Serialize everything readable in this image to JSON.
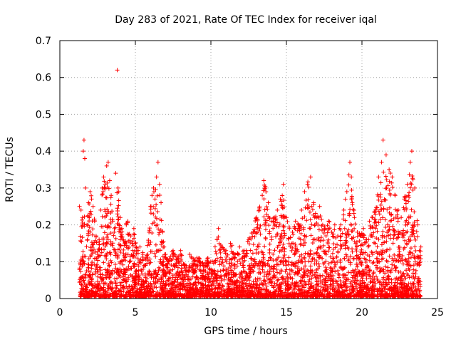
{
  "chart_data": {
    "type": "scatter",
    "title": "Day 283 of 2021, Rate Of TEC Index for receiver iqal",
    "xlabel": "GPS time / hours",
    "ylabel": "ROTI / TECUs",
    "xlim": [
      0,
      25
    ],
    "ylim": [
      0,
      0.7
    ],
    "x_ticks": [
      0,
      5,
      10,
      15,
      20,
      25
    ],
    "y_ticks": [
      0,
      0.1,
      0.2,
      0.3,
      0.4,
      0.5,
      0.6,
      0.7
    ],
    "x_tick_labels": [
      "0",
      "5",
      "10",
      "15",
      "20",
      "25"
    ],
    "y_tick_labels": [
      "0",
      "0.1",
      "0.2",
      "0.3",
      "0.4",
      "0.5",
      "0.6",
      "0.7"
    ],
    "grid": true,
    "marker": "+",
    "color": "#ff0000",
    "series": [
      {
        "points": [
          [
            1.3,
            0.25
          ],
          [
            1.4,
            0.24
          ],
          [
            1.5,
            0.22
          ],
          [
            1.55,
            0.4
          ],
          [
            1.6,
            0.43
          ],
          [
            1.65,
            0.38
          ],
          [
            1.7,
            0.3
          ],
          [
            1.8,
            0.2
          ],
          [
            1.9,
            0.26
          ],
          [
            2.0,
            0.29
          ],
          [
            2.1,
            0.27
          ],
          [
            2.2,
            0.25
          ],
          [
            2.3,
            0.21
          ],
          [
            2.4,
            0.17
          ],
          [
            2.5,
            0.12
          ],
          [
            2.6,
            0.16
          ],
          [
            2.7,
            0.24
          ],
          [
            2.8,
            0.3
          ],
          [
            2.9,
            0.33
          ],
          [
            3.0,
            0.31
          ],
          [
            3.1,
            0.36
          ],
          [
            3.2,
            0.37
          ],
          [
            3.3,
            0.32
          ],
          [
            3.4,
            0.28
          ],
          [
            3.5,
            0.21
          ],
          [
            3.6,
            0.18
          ],
          [
            3.7,
            0.34
          ],
          [
            3.8,
            0.62
          ],
          [
            3.85,
            0.3
          ],
          [
            3.9,
            0.29
          ],
          [
            4.0,
            0.22
          ],
          [
            4.1,
            0.19
          ],
          [
            4.2,
            0.16
          ],
          [
            4.3,
            0.15
          ],
          [
            4.4,
            0.2
          ],
          [
            4.5,
            0.21
          ],
          [
            4.7,
            0.17
          ],
          [
            4.9,
            0.19
          ],
          [
            5.1,
            0.13
          ],
          [
            5.3,
            0.14
          ],
          [
            5.5,
            0.12
          ],
          [
            5.7,
            0.11
          ],
          [
            5.9,
            0.18
          ],
          [
            6.0,
            0.25
          ],
          [
            6.1,
            0.28
          ],
          [
            6.2,
            0.3
          ],
          [
            6.3,
            0.27
          ],
          [
            6.4,
            0.33
          ],
          [
            6.5,
            0.37
          ],
          [
            6.6,
            0.31
          ],
          [
            6.7,
            0.26
          ],
          [
            6.8,
            0.18
          ],
          [
            6.9,
            0.14
          ],
          [
            7.0,
            0.12
          ],
          [
            7.2,
            0.1
          ],
          [
            7.5,
            0.13
          ],
          [
            7.8,
            0.11
          ],
          [
            8.0,
            0.13
          ],
          [
            8.3,
            0.09
          ],
          [
            8.6,
            0.12
          ],
          [
            8.9,
            0.1
          ],
          [
            9.2,
            0.11
          ],
          [
            9.5,
            0.09
          ],
          [
            9.8,
            0.11
          ],
          [
            10.1,
            0.1
          ],
          [
            10.4,
            0.16
          ],
          [
            10.5,
            0.19
          ],
          [
            10.7,
            0.14
          ],
          [
            11.0,
            0.13
          ],
          [
            11.3,
            0.15
          ],
          [
            11.6,
            0.12
          ],
          [
            11.9,
            0.14
          ],
          [
            12.2,
            0.13
          ],
          [
            12.5,
            0.16
          ],
          [
            12.8,
            0.18
          ],
          [
            13.0,
            0.22
          ],
          [
            13.2,
            0.24
          ],
          [
            13.4,
            0.28
          ],
          [
            13.5,
            0.32
          ],
          [
            13.6,
            0.3
          ],
          [
            13.8,
            0.26
          ],
          [
            14.0,
            0.21
          ],
          [
            14.2,
            0.22
          ],
          [
            14.4,
            0.24
          ],
          [
            14.6,
            0.27
          ],
          [
            14.8,
            0.31
          ],
          [
            15.0,
            0.22
          ],
          [
            15.2,
            0.19
          ],
          [
            15.4,
            0.18
          ],
          [
            15.6,
            0.21
          ],
          [
            15.8,
            0.2
          ],
          [
            16.0,
            0.24
          ],
          [
            16.2,
            0.29
          ],
          [
            16.4,
            0.31
          ],
          [
            16.6,
            0.33
          ],
          [
            16.8,
            0.26
          ],
          [
            17.0,
            0.22
          ],
          [
            17.2,
            0.25
          ],
          [
            17.4,
            0.2
          ],
          [
            17.6,
            0.19
          ],
          [
            17.8,
            0.21
          ],
          [
            18.0,
            0.18
          ],
          [
            18.2,
            0.2
          ],
          [
            18.4,
            0.17
          ],
          [
            18.6,
            0.2
          ],
          [
            18.8,
            0.24
          ],
          [
            19.0,
            0.29
          ],
          [
            19.2,
            0.37
          ],
          [
            19.3,
            0.33
          ],
          [
            19.5,
            0.22
          ],
          [
            19.7,
            0.18
          ],
          [
            19.9,
            0.17
          ],
          [
            20.1,
            0.19
          ],
          [
            20.3,
            0.16
          ],
          [
            20.5,
            0.21
          ],
          [
            20.7,
            0.22
          ],
          [
            20.9,
            0.24
          ],
          [
            21.1,
            0.33
          ],
          [
            21.3,
            0.37
          ],
          [
            21.4,
            0.43
          ],
          [
            21.6,
            0.39
          ],
          [
            21.8,
            0.35
          ],
          [
            22.0,
            0.33
          ],
          [
            22.2,
            0.28
          ],
          [
            22.4,
            0.24
          ],
          [
            22.6,
            0.22
          ],
          [
            22.8,
            0.27
          ],
          [
            23.0,
            0.31
          ],
          [
            23.2,
            0.37
          ],
          [
            23.3,
            0.4
          ],
          [
            23.5,
            0.3
          ],
          [
            23.7,
            0.2
          ],
          [
            23.9,
            0.14
          ]
        ]
      }
    ]
  }
}
